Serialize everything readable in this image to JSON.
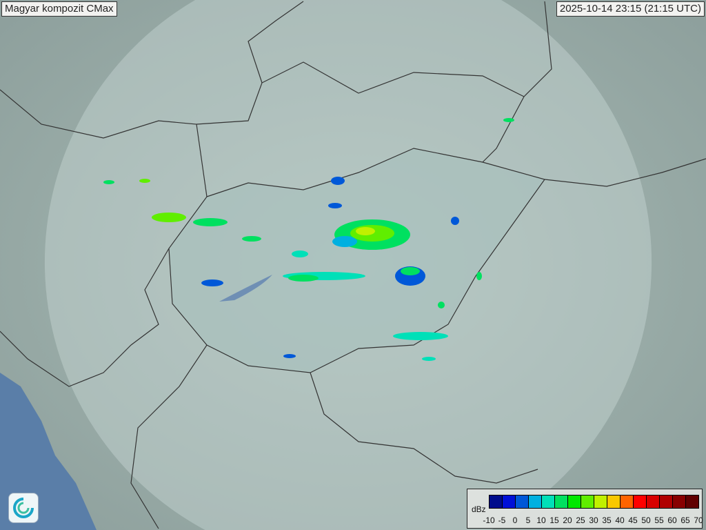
{
  "title": "Magyar kompozit  CMax",
  "timestamp": "2025-10-14 23:15 (21:15 UTC)",
  "legend": {
    "unit": "dBz",
    "ticks": [
      "-10",
      "-5",
      "0",
      "5",
      "10",
      "15",
      "20",
      "25",
      "30",
      "35",
      "40",
      "45",
      "50",
      "55",
      "60",
      "65",
      "70"
    ],
    "colors": [
      "#000c8c",
      "#0010d8",
      "#0058d8",
      "#00b0e0",
      "#00e0b8",
      "#00e060",
      "#00e800",
      "#60ee00",
      "#c0f000",
      "#f8c800",
      "#ff6400",
      "#ff0000",
      "#d80000",
      "#b00000",
      "#880000",
      "#600000"
    ]
  },
  "colors": {
    "land": "#8fa3a0",
    "radar_coverage": "#b8cac6",
    "lake": "#6f8fb4",
    "sea": "#5a7ea8",
    "border": "#333333"
  },
  "logo_icon": "weather-service-swirl-icon"
}
